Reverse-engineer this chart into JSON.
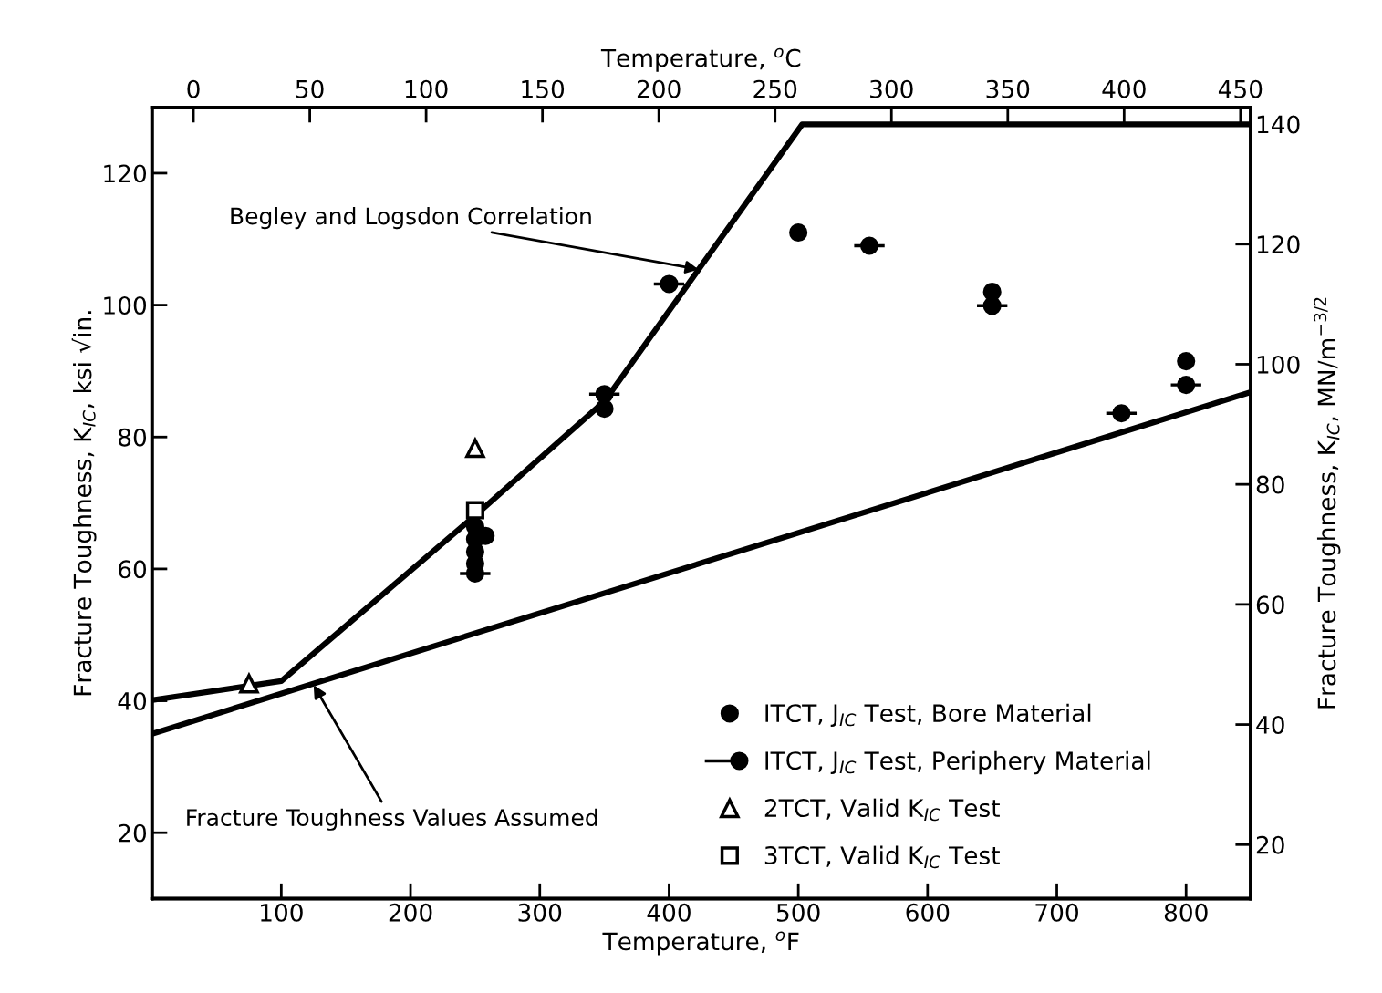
{
  "chart_data": {
    "type": "scatter",
    "xlabel": "Temperature, $^{o}$F",
    "ylabel": "Fracture Toughness, K$_{IC}$, ksi √in.",
    "x2label": "Temperature, $^{o}$C",
    "y2label": "Fracture Toughness, K$_{IC}$, MN/m$^{−3/2}$",
    "xlim": [
      0,
      850
    ],
    "xticks": [
      100,
      200,
      300,
      400,
      500,
      600,
      700,
      800
    ],
    "ylim": [
      10,
      130
    ],
    "yticks": [
      20,
      40,
      60,
      80,
      100,
      120
    ],
    "x2lim": [
      -17.8,
      454.4
    ],
    "x2ticks": [
      0,
      50,
      100,
      150,
      200,
      250,
      300,
      350,
      400,
      450
    ],
    "y2lim": [
      11.0,
      142.8
    ],
    "y2ticks": [
      20,
      40,
      60,
      80,
      100,
      120,
      140
    ],
    "grid": false,
    "legend": "bottom right",
    "series": [
      {
        "type": "line",
        "color": "#000000",
        "marker": "none",
        "line_style": "solid",
        "x": [
          0,
          100,
          250,
          350,
          503,
          850
        ],
        "values": [
          40.1,
          43.0,
          68.1,
          85.4,
          127.4,
          127.4
        ]
      },
      {
        "type": "line",
        "color": "#000000",
        "marker": "none",
        "line_style": "solid",
        "x": [
          0,
          850
        ],
        "values": [
          35.0,
          86.8
        ]
      },
      {
        "name": "ITCT, J$_{IC}$ Test, Bore Material",
        "color": "#000000",
        "marker": "circle",
        "x": [
          250,
          250,
          250,
          250,
          258,
          350,
          500,
          650,
          800
        ],
        "values": [
          66.4,
          64.5,
          62.6,
          60.8,
          65.0,
          84.3,
          111.0,
          102.0,
          91.5
        ]
      },
      {
        "name": "ITCT, J$_{IC}$ Test, Periphery Material",
        "color": "#000000",
        "marker": "circle-dash",
        "x": [
          250,
          350,
          400,
          555,
          650,
          750,
          800
        ],
        "values": [
          59.3,
          86.5,
          103.2,
          109.0,
          99.9,
          83.6,
          87.9
        ]
      },
      {
        "name": "2TCT, Valid K$_{IC}$ Test",
        "color": "#000000",
        "marker": "triangle",
        "x": [
          75,
          250
        ],
        "values": [
          42.6,
          78.3
        ]
      },
      {
        "name": "3TCT, Valid K$_{IC}$ Test",
        "color": "#000000",
        "marker": "square",
        "x": [
          250
        ],
        "values": [
          68.9
        ]
      }
    ],
    "annotations": [
      {
        "text": "Begley and Logsdon Correlation",
        "x": 423,
        "y": 105.4
      },
      {
        "text": "Fracture Toughness Values Assumed",
        "x": 125,
        "y": 42.4
      }
    ]
  }
}
